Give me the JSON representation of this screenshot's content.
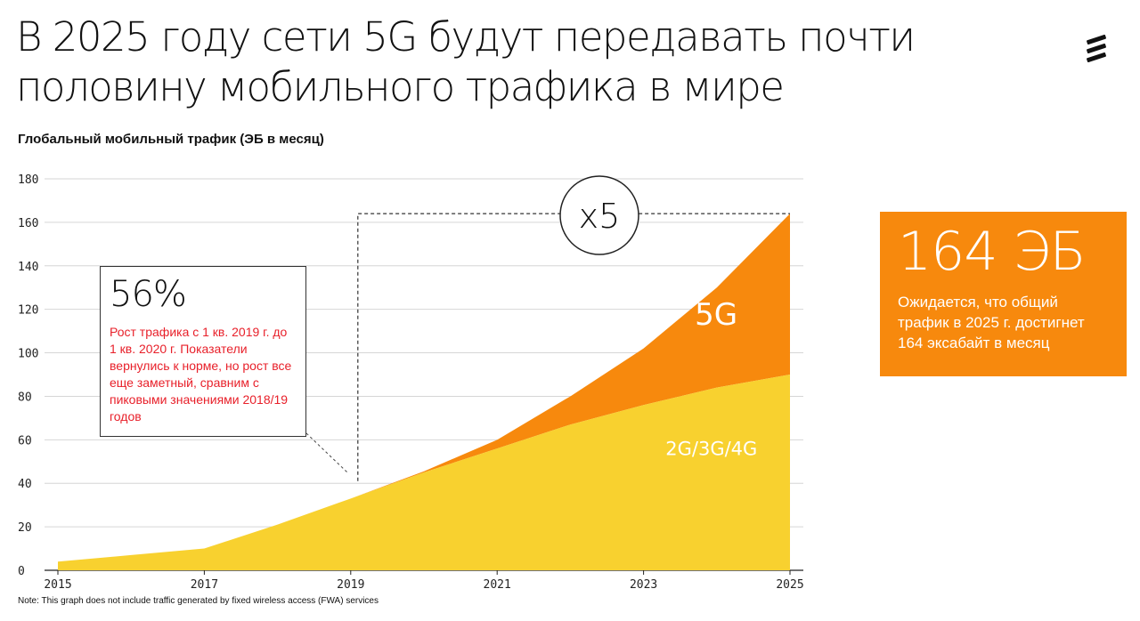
{
  "headline": {
    "line1": "В 2025 году сети 5G будут передавать почти",
    "line2": "половину мобильного трафика в мире"
  },
  "logo_icon": "ericsson-logo-icon",
  "colors": {
    "series_5g": "#f7890d",
    "series_legacy": "#f8d12f",
    "info_box": "#f7890d",
    "callout_text": "#e8202a"
  },
  "chart_data": {
    "type": "area",
    "title": "Глобальный мобильный трафик (ЭБ в месяц)",
    "xlabel": "",
    "ylabel": "",
    "stacked": true,
    "x": [
      2015,
      2016,
      2017,
      2018,
      2019,
      2020,
      2021,
      2022,
      2023,
      2024,
      2025
    ],
    "x_ticks": [
      "2015",
      "2017",
      "2019",
      "2021",
      "2023",
      "2025"
    ],
    "y_ticks": [
      "0",
      "20",
      "40",
      "60",
      "80",
      "100",
      "120",
      "140",
      "160",
      "180"
    ],
    "ylim": [
      0,
      180
    ],
    "xlim": [
      2015,
      2025
    ],
    "grid": true,
    "series": [
      {
        "name": "2G/3G/4G",
        "values": [
          4,
          7,
          10,
          21,
          33,
          45,
          56,
          67,
          76,
          84,
          90
        ]
      },
      {
        "name": "5G",
        "values": [
          0,
          0,
          0,
          0,
          0,
          0.5,
          4,
          13,
          26,
          46,
          74
        ]
      }
    ],
    "annotations": {
      "multiplier": "x5",
      "multiplier_from_x": 2019,
      "multiplier_level": 164
    }
  },
  "callout": {
    "value": "56%",
    "text": "Рост трафика с 1 кв. 2019 г. до 1 кв. 2020 г. Показатели вернулись к норме, но рост все еще заметный, сравним с пиковыми значениями 2018/19 годов"
  },
  "info_box": {
    "value": "164 ЭБ",
    "text": "Ожидается, что общий трафик в 2025 г. достигнет 164 эксабайт в месяц"
  },
  "note": "Note: This graph does not include traffic generated by fixed wireless access (FWA) services"
}
